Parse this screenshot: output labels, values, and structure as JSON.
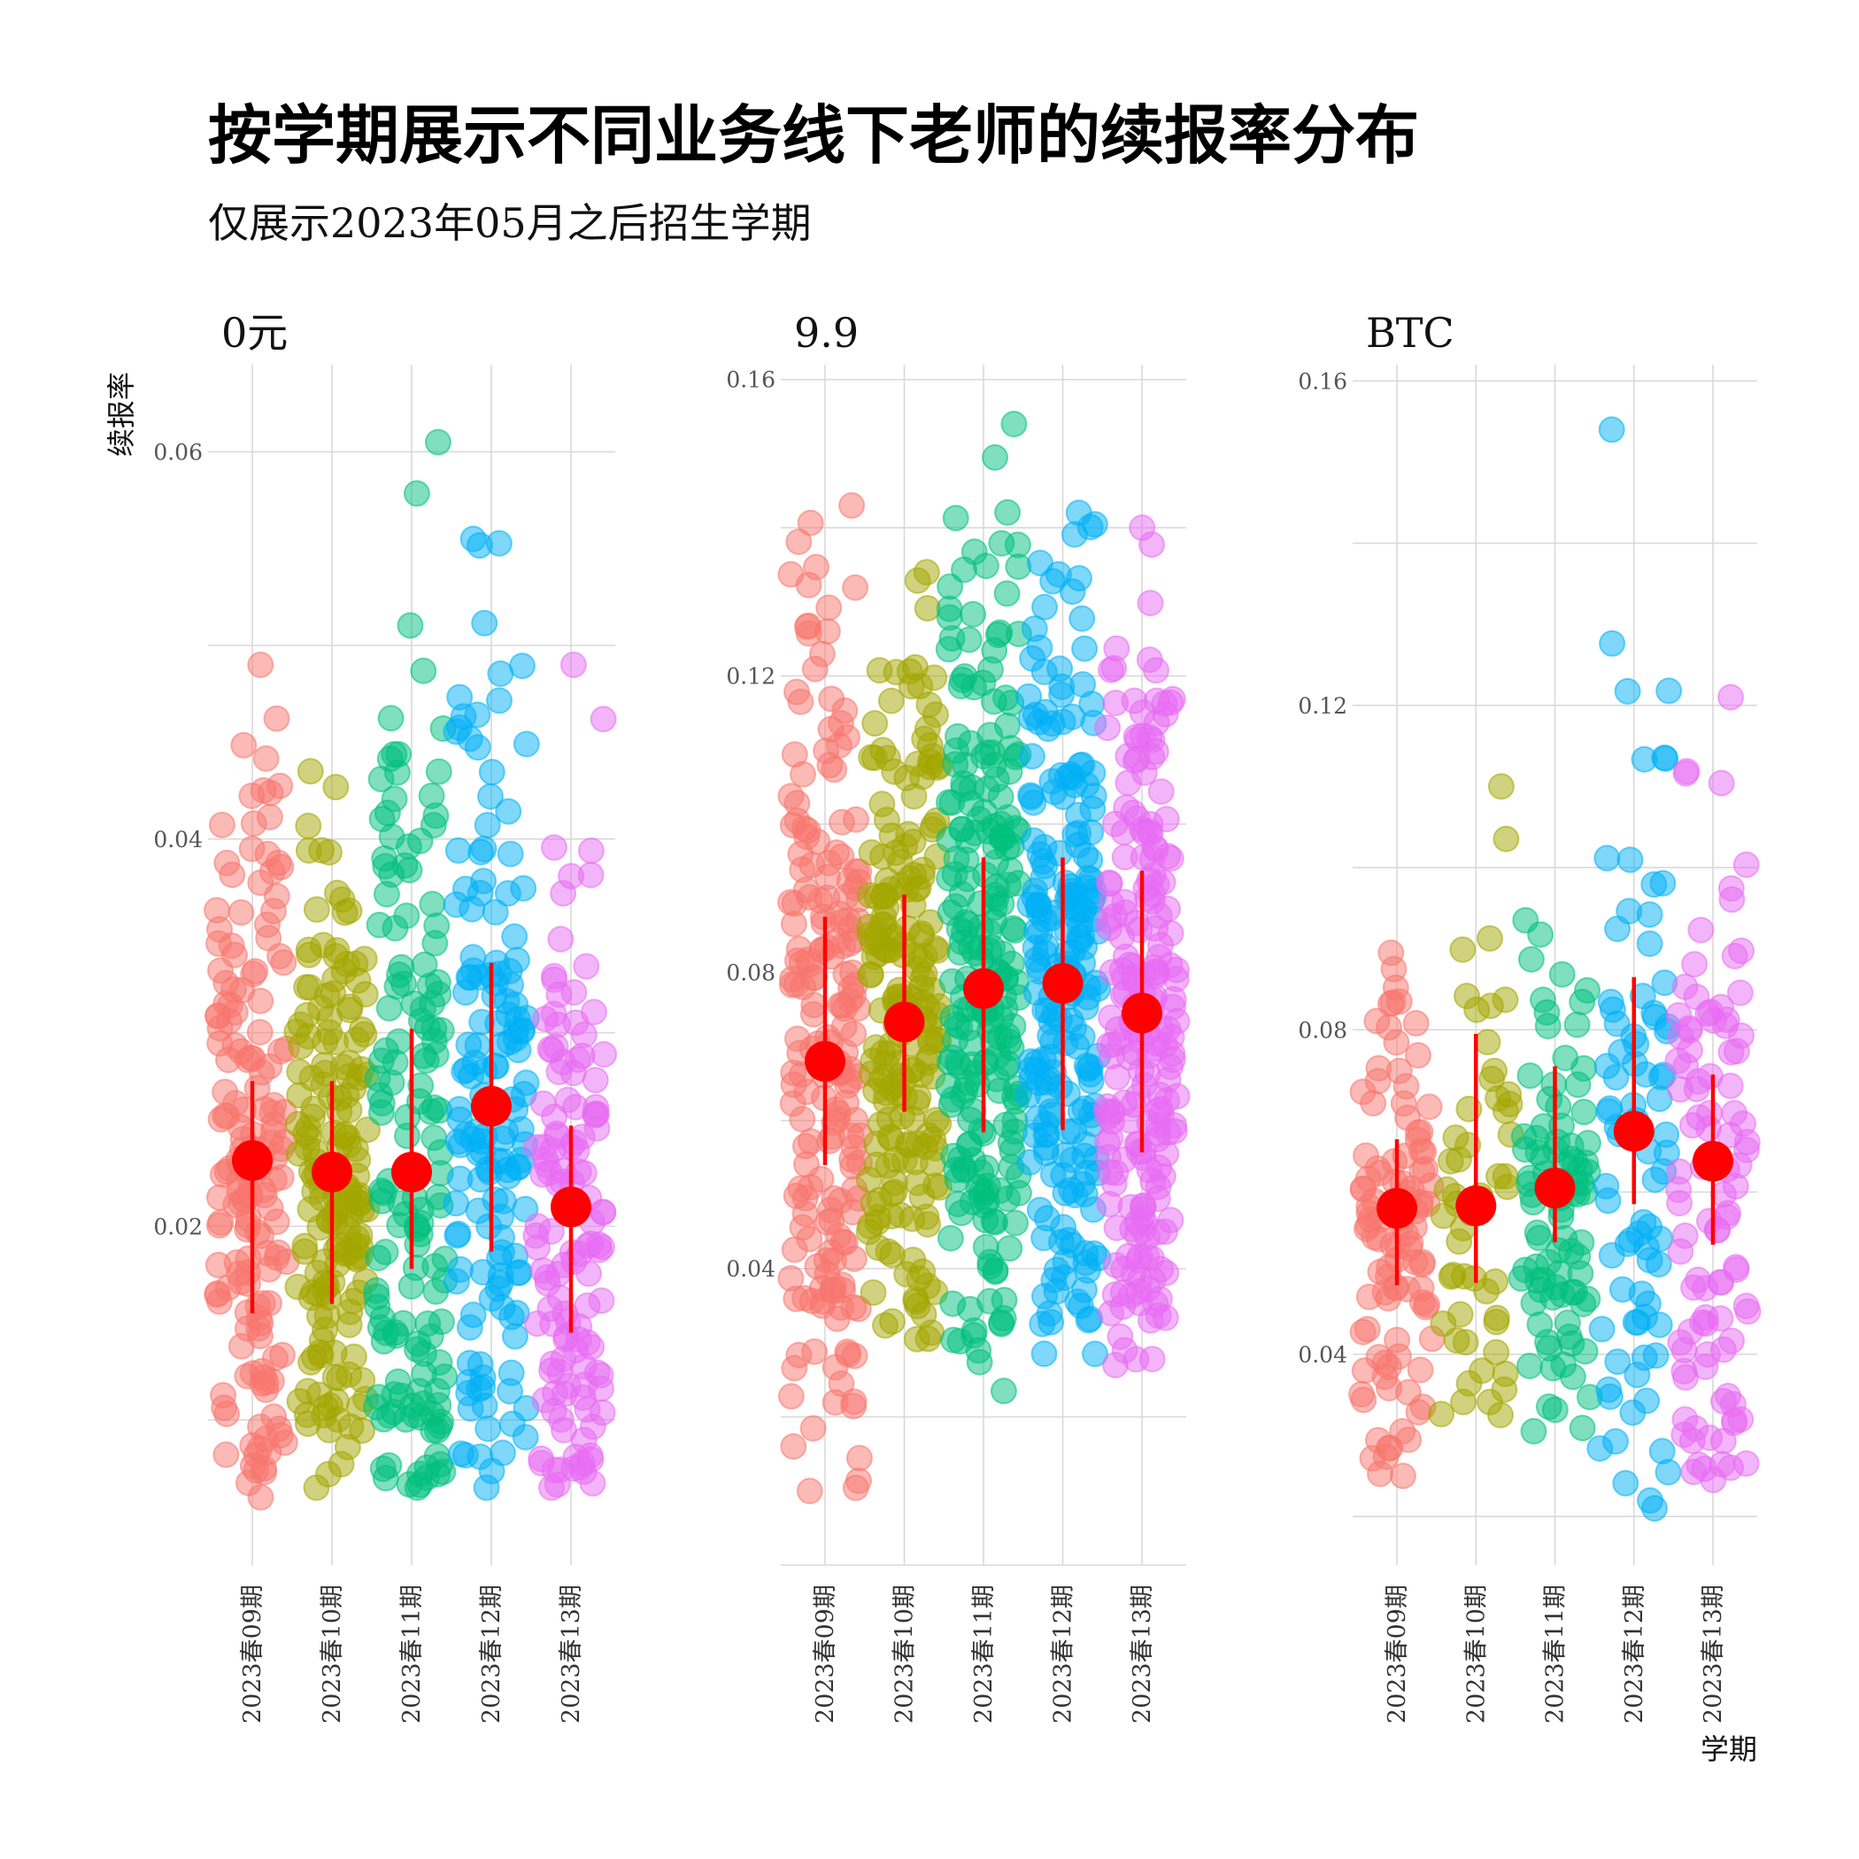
{
  "chart_data": {
    "type": "scatter",
    "title": "按学期展示不同业务线下老师的续报率分布",
    "subtitle": "仅展示2023年05月之后招生学期",
    "xlabel": "学期",
    "ylabel": "续报率",
    "categories": [
      "2023春09期",
      "2023春10期",
      "2023春11期",
      "2023春12期",
      "2023春13期"
    ],
    "category_colors": [
      "#F8766D",
      "#A3A500",
      "#00BF7D",
      "#00B0F6",
      "#E76BF3"
    ],
    "summary_color": "#FF0000",
    "grid": true,
    "legend": "none",
    "facets": [
      {
        "name": "0元",
        "ylim": [
          0.0025,
          0.0645
        ],
        "yticks": [
          0.02,
          0.04,
          0.06
        ],
        "ytick_labels": [
          "0.02",
          "0.04",
          "0.06"
        ],
        "summary": [
          {
            "category": "2023春09期",
            "mean": 0.0234,
            "low": 0.0155,
            "high": 0.0275
          },
          {
            "category": "2023春10期",
            "mean": 0.0228,
            "low": 0.016,
            "high": 0.0275
          },
          {
            "category": "2023春11期",
            "mean": 0.0228,
            "low": 0.0178,
            "high": 0.0302
          },
          {
            "category": "2023春12期",
            "mean": 0.0262,
            "low": 0.0187,
            "high": 0.0336
          },
          {
            "category": "2023春13期",
            "mean": 0.021,
            "low": 0.0145,
            "high": 0.0252
          }
        ],
        "points": [
          {
            "category": "2023春09期",
            "count": 170,
            "min": 0.006,
            "max": 0.049,
            "mode": 0.024
          },
          {
            "category": "2023春10期",
            "count": 175,
            "min": 0.0065,
            "max": 0.0435,
            "mode": 0.023
          },
          {
            "category": "2023春11期",
            "count": 150,
            "min": 0.0065,
            "max": 0.0605,
            "mode": 0.024
          },
          {
            "category": "2023春12期",
            "count": 150,
            "min": 0.0065,
            "max": 0.0555,
            "mode": 0.026
          },
          {
            "category": "2023春13期",
            "count": 130,
            "min": 0.0065,
            "max": 0.049,
            "mode": 0.021
          }
        ]
      },
      {
        "name": "9.9",
        "ylim": [
          0.0,
          0.162
        ],
        "yticks": [
          0.04,
          0.08,
          0.12,
          0.16
        ],
        "ytick_labels": [
          "0.04",
          "0.08",
          "0.12",
          "0.16"
        ],
        "summary": [
          {
            "category": "2023春09期",
            "mean": 0.068,
            "low": 0.054,
            "high": 0.0875
          },
          {
            "category": "2023春10期",
            "mean": 0.0733,
            "low": 0.0612,
            "high": 0.0905
          },
          {
            "category": "2023春11期",
            "mean": 0.0778,
            "low": 0.0584,
            "high": 0.0955
          },
          {
            "category": "2023春12期",
            "mean": 0.0785,
            "low": 0.0587,
            "high": 0.0955
          },
          {
            "category": "2023春13期",
            "mean": 0.0745,
            "low": 0.0557,
            "high": 0.0937
          }
        ],
        "points": [
          {
            "category": "2023春09期",
            "count": 200,
            "min": 0.01,
            "max": 0.143,
            "mode": 0.068
          },
          {
            "category": "2023春10期",
            "count": 210,
            "min": 0.0305,
            "max": 0.134,
            "mode": 0.074
          },
          {
            "category": "2023春11期",
            "count": 230,
            "min": 0.0235,
            "max": 0.154,
            "mode": 0.078
          },
          {
            "category": "2023春12期",
            "count": 220,
            "min": 0.0285,
            "max": 0.142,
            "mode": 0.078
          },
          {
            "category": "2023春13期",
            "count": 220,
            "min": 0.027,
            "max": 0.14,
            "mode": 0.075
          }
        ]
      },
      {
        "name": "BTC",
        "ylim": [
          0.014,
          0.162
        ],
        "yticks": [
          0.04,
          0.08,
          0.12,
          0.16
        ],
        "ytick_labels": [
          "0.04",
          "0.08",
          "0.12",
          "0.16"
        ],
        "summary": [
          {
            "category": "2023春09期",
            "mean": 0.058,
            "low": 0.0485,
            "high": 0.0665
          },
          {
            "category": "2023春10期",
            "mean": 0.0583,
            "low": 0.0488,
            "high": 0.0795
          },
          {
            "category": "2023春11期",
            "mean": 0.0605,
            "low": 0.0538,
            "high": 0.0755
          },
          {
            "category": "2023春12期",
            "mean": 0.0675,
            "low": 0.0585,
            "high": 0.0865
          },
          {
            "category": "2023春13期",
            "mean": 0.0638,
            "low": 0.0535,
            "high": 0.0745
          }
        ],
        "points": [
          {
            "category": "2023春09期",
            "count": 110,
            "min": 0.025,
            "max": 0.0895,
            "mode": 0.058
          },
          {
            "category": "2023春10期",
            "count": 55,
            "min": 0.0325,
            "max": 0.11,
            "mode": 0.058
          },
          {
            "category": "2023春11期",
            "count": 90,
            "min": 0.0305,
            "max": 0.0935,
            "mode": 0.06
          },
          {
            "category": "2023春12期",
            "count": 80,
            "min": 0.021,
            "max": 0.154,
            "mode": 0.06
          },
          {
            "category": "2023春13期",
            "count": 100,
            "min": 0.0245,
            "max": 0.121,
            "mode": 0.063
          }
        ]
      }
    ]
  }
}
